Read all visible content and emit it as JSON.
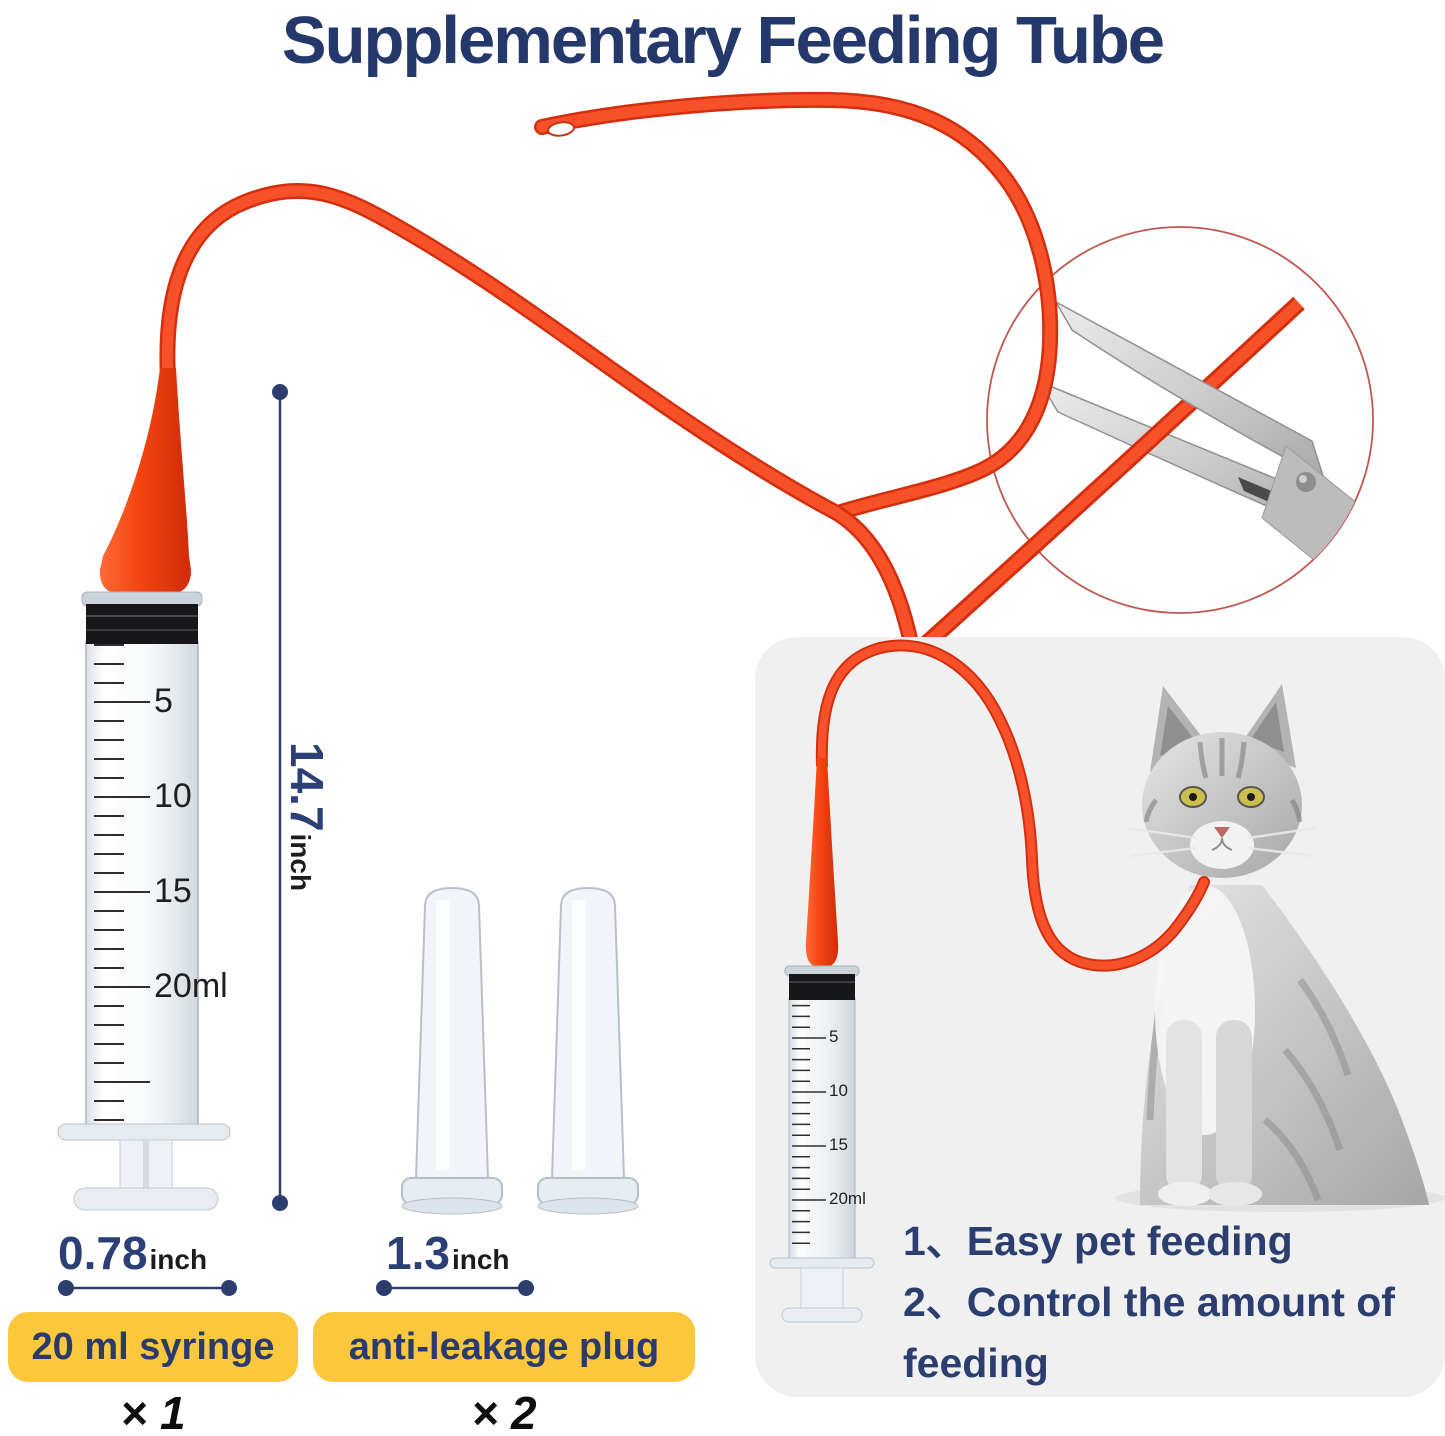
{
  "title": "Supplementary Feeding Tube",
  "main_syringe": {
    "scale_labels": [
      "5",
      "10",
      "15",
      "20ml"
    ],
    "height": {
      "value": "14.7",
      "unit": "inch"
    },
    "width": {
      "value": "0.78",
      "unit": "inch"
    },
    "badge": "20 ml syringe",
    "count": "× 1"
  },
  "plugs": {
    "width": {
      "value": "1.3",
      "unit": "inch"
    },
    "badge": "anti-leakage plug",
    "count": "× 2"
  },
  "panel": {
    "syringe_scale_labels": [
      "5",
      "10",
      "15",
      "20ml"
    ],
    "benefits": [
      "1、Easy pet feeding",
      "2、Control the amount of feeding"
    ]
  },
  "colors": {
    "accent_navy": "#24386b",
    "badge_yellow": "#fbc83d",
    "tube_red": "#f04a20",
    "panel_gray": "#f0f0f1"
  }
}
